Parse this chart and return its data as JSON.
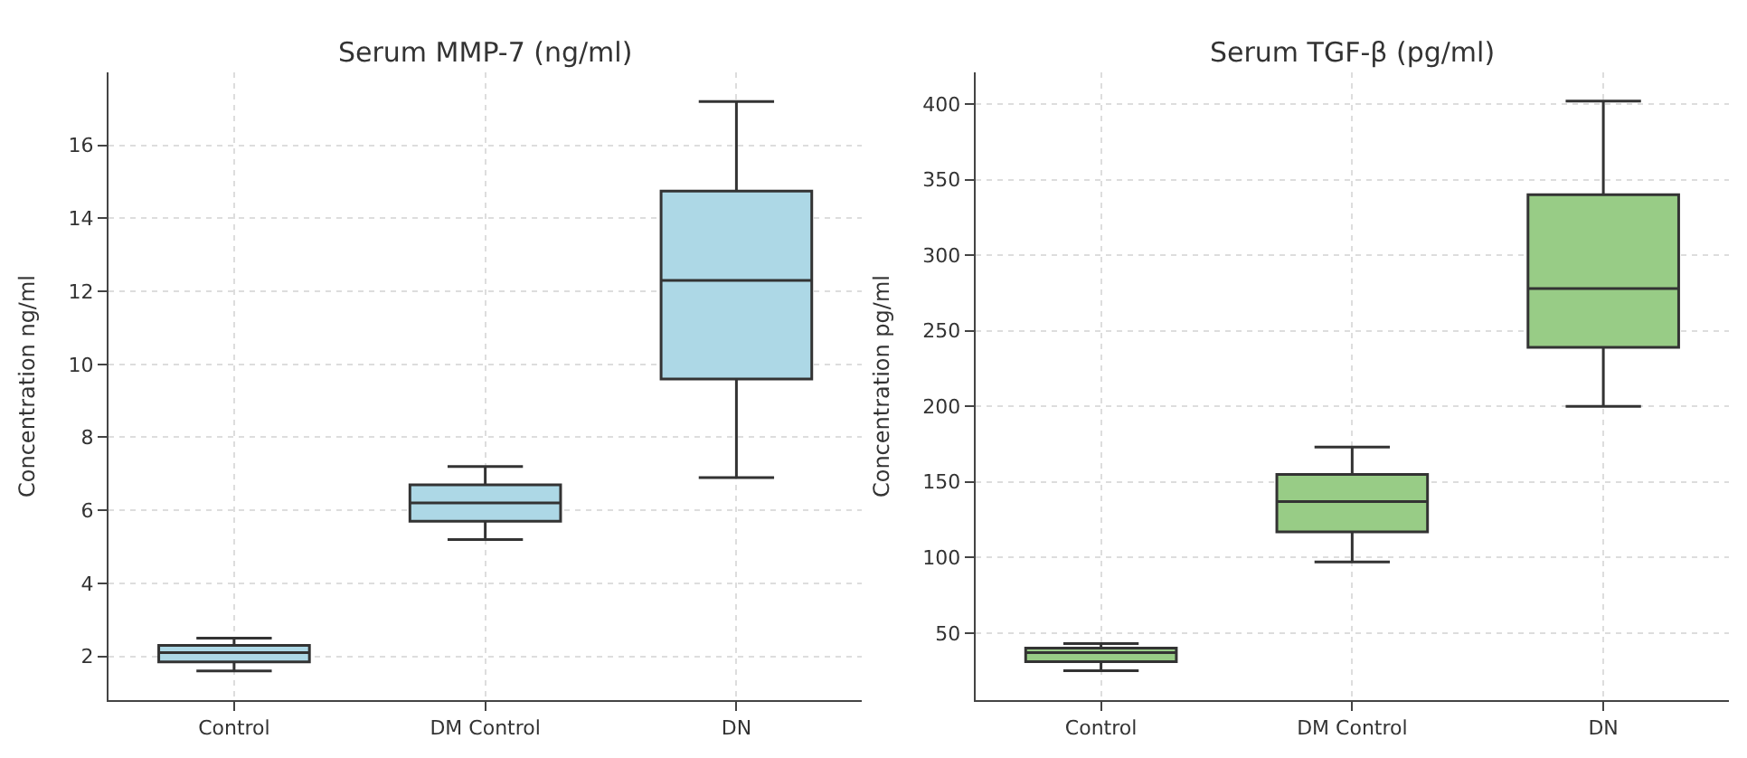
{
  "chart_data": [
    {
      "type": "box",
      "title": "Serum MMP-7 (ng/ml)",
      "ylabel": "Concentration ng/ml",
      "categories": [
        "Control",
        "DM Control",
        "DN"
      ],
      "color": "#add8e6",
      "ylim": [
        0.8,
        18
      ],
      "yticks": [
        2,
        4,
        6,
        8,
        10,
        12,
        14,
        16
      ],
      "grid": true,
      "legend": false,
      "boxes": [
        {
          "low": 1.6,
          "q1": 1.85,
          "median": 2.1,
          "q3": 2.3,
          "high": 2.5
        },
        {
          "low": 5.2,
          "q1": 5.7,
          "median": 6.2,
          "q3": 6.7,
          "high": 7.2
        },
        {
          "low": 6.9,
          "q1": 9.6,
          "median": 12.3,
          "q3": 14.75,
          "high": 17.2
        }
      ]
    },
    {
      "type": "box",
      "title": "Serum TGF-β (pg/ml)",
      "ylabel": "Concentration pg/ml",
      "categories": [
        "Control",
        "DM Control",
        "DN"
      ],
      "color": "#98cc86",
      "ylim": [
        5.6,
        421
      ],
      "yticks": [
        50,
        100,
        150,
        200,
        250,
        300,
        350,
        400
      ],
      "grid": true,
      "legend": false,
      "boxes": [
        {
          "low": 25,
          "q1": 31,
          "median": 37,
          "q3": 40,
          "high": 43
        },
        {
          "low": 97,
          "q1": 117,
          "median": 137,
          "q3": 155,
          "high": 173
        },
        {
          "low": 200,
          "q1": 239,
          "median": 278,
          "q3": 340,
          "high": 402
        }
      ]
    }
  ]
}
